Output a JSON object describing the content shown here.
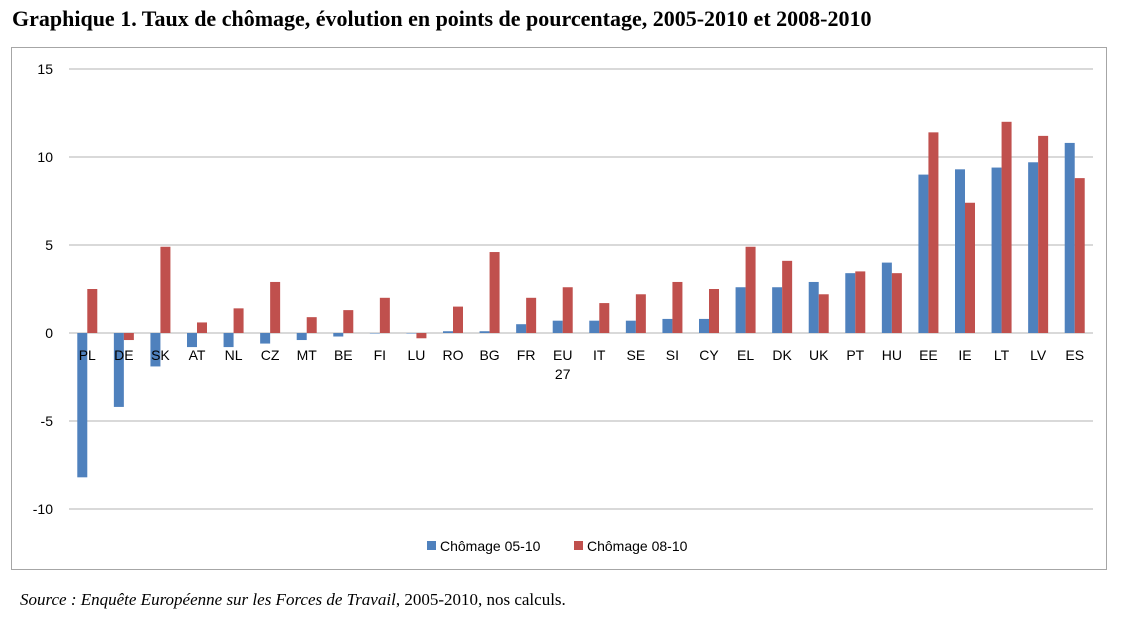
{
  "title": "Graphique 1. Taux de chômage, évolution en points de pourcentage, 2005-2010 et 2008-2010",
  "source": {
    "prefix": "Source : Enquête Européenne sur les Forces de Travail",
    "suffix": ", 2005-2010, nos calculs."
  },
  "colors": {
    "series1": "#4f81bd",
    "series2": "#c0504d",
    "grid": "#b3b3b3"
  },
  "chart_data": {
    "type": "bar",
    "categories": [
      "PL",
      "DE",
      "SK",
      "AT",
      "NL",
      "CZ",
      "MT",
      "BE",
      "FI",
      "LU",
      "RO",
      "BG",
      "FR",
      "EU 27",
      "IT",
      "SE",
      "SI",
      "CY",
      "EL",
      "DK",
      "UK",
      "PT",
      "HU",
      "EE",
      "IE",
      "LT",
      "LV",
      "ES"
    ],
    "series": [
      {
        "name": "Chômage 05-10",
        "values": [
          -8.2,
          -4.2,
          -1.9,
          -0.8,
          -0.8,
          -0.6,
          -0.4,
          -0.2,
          0.0,
          0.0,
          0.1,
          0.1,
          0.5,
          0.7,
          0.7,
          0.7,
          0.8,
          0.8,
          2.6,
          2.6,
          2.9,
          3.4,
          4.0,
          9.0,
          9.3,
          9.4,
          9.7,
          10.8
        ]
      },
      {
        "name": "Chômage 08-10",
        "values": [
          2.5,
          -0.4,
          4.9,
          0.6,
          1.4,
          2.9,
          0.9,
          1.3,
          2.0,
          -0.3,
          1.5,
          4.6,
          2.0,
          2.6,
          1.7,
          2.2,
          2.9,
          2.5,
          4.9,
          4.1,
          2.2,
          3.5,
          3.4,
          11.4,
          7.4,
          12.0,
          11.2,
          8.8
        ]
      }
    ],
    "ylim": [
      -10,
      15
    ],
    "yticks": [
      -10,
      -5,
      0,
      5,
      10,
      15
    ],
    "grid": true,
    "legend": "bottom"
  }
}
